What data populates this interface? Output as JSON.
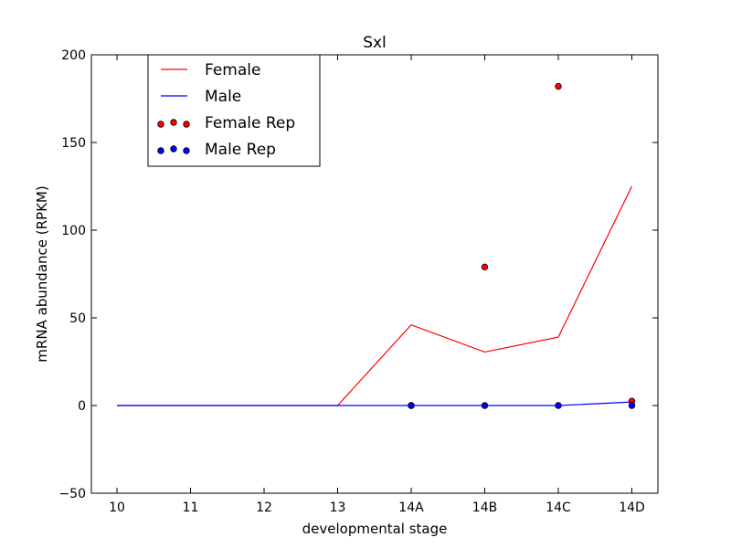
{
  "chart_data": {
    "type": "line",
    "title": "Sxl",
    "xlabel": "developmental stage",
    "ylabel": "mRNA abundance (RPKM)",
    "categories": [
      "10",
      "11",
      "12",
      "13",
      "14A",
      "14B",
      "14C",
      "14D"
    ],
    "ylim": [
      -50,
      200
    ],
    "yticks": [
      -50,
      0,
      50,
      100,
      150,
      200
    ],
    "grid": false,
    "legend_position": "top-left",
    "series": [
      {
        "name": "Female",
        "kind": "line",
        "color": "#ff0000",
        "values": [
          0,
          0,
          0,
          0,
          46,
          30.5,
          39,
          125
        ]
      },
      {
        "name": "Male",
        "kind": "line",
        "color": "#0000ff",
        "values": [
          0,
          0,
          0,
          0,
          0,
          0,
          0,
          2
        ]
      }
    ],
    "replicates": [
      {
        "name": "Female Rep",
        "kind": "scatter",
        "color": "#ff0000",
        "points": [
          {
            "x": "14A",
            "y": 0
          },
          {
            "x": "14B",
            "y": 79
          },
          {
            "x": "14C",
            "y": 182
          },
          {
            "x": "14D",
            "y": 2.5
          }
        ]
      },
      {
        "name": "Male Rep",
        "kind": "scatter",
        "color": "#0000ff",
        "points": [
          {
            "x": "14A",
            "y": 0
          },
          {
            "x": "14B",
            "y": 0
          },
          {
            "x": "14C",
            "y": 0
          },
          {
            "x": "14D",
            "y": 0
          }
        ]
      }
    ]
  }
}
